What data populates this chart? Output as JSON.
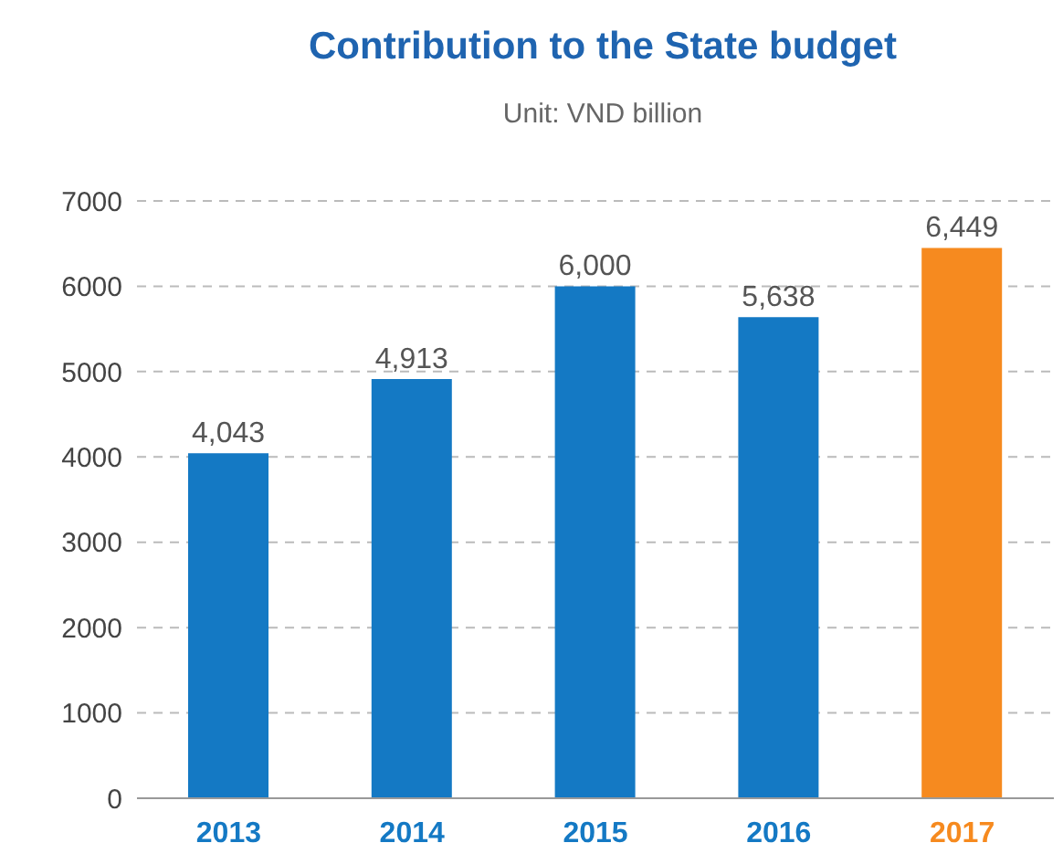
{
  "chart_data": {
    "type": "bar",
    "title": "Contribution to the State budget",
    "subtitle": "Unit: VND billion",
    "categories": [
      "2013",
      "2014",
      "2015",
      "2016",
      "2017"
    ],
    "values": [
      4043,
      4913,
      6000,
      5638,
      6449
    ],
    "colors": [
      "#1479c4",
      "#1479c4",
      "#1479c4",
      "#1479c4",
      "#f68a1f"
    ],
    "value_labels": [
      "4,043",
      "4,913",
      "6,000",
      "5,638",
      "6,449"
    ],
    "ylim": [
      0,
      7000
    ],
    "yticks": [
      0,
      1000,
      2000,
      3000,
      4000,
      5000,
      6000,
      7000
    ],
    "grid": "y"
  }
}
